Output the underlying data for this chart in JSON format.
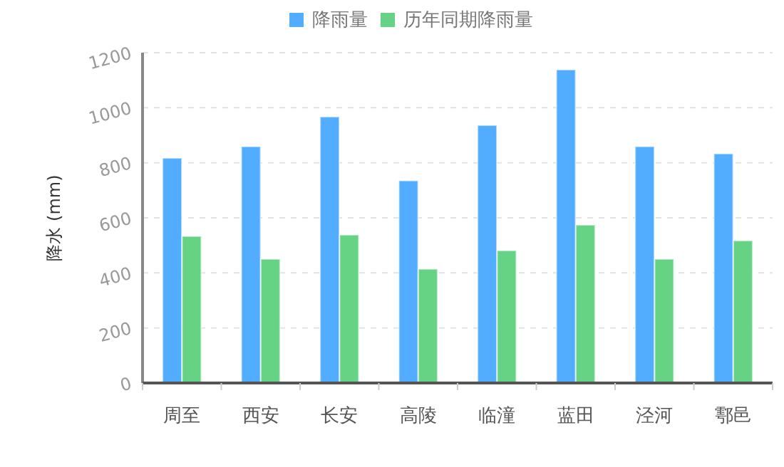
{
  "chart_data": {
    "type": "bar",
    "ylabel": "降水 (mm)",
    "categories": [
      "周至",
      "西安",
      "长安",
      "高陵",
      "临潼",
      "蓝田",
      "泾河",
      "鄠邑"
    ],
    "series": [
      {
        "name": "降雨量",
        "color": "#52acff",
        "values": [
          817,
          859,
          967,
          735,
          936,
          1138,
          859,
          833
        ]
      },
      {
        "name": "历年同期降雨量",
        "color": "#66d384",
        "values": [
          533,
          450,
          538,
          414,
          481,
          574,
          450,
          517
        ]
      }
    ],
    "ylim": [
      0,
      1200
    ],
    "yticks": [
      0,
      200,
      400,
      600,
      800,
      1000,
      1200
    ],
    "grid": "y",
    "legend": "top"
  }
}
